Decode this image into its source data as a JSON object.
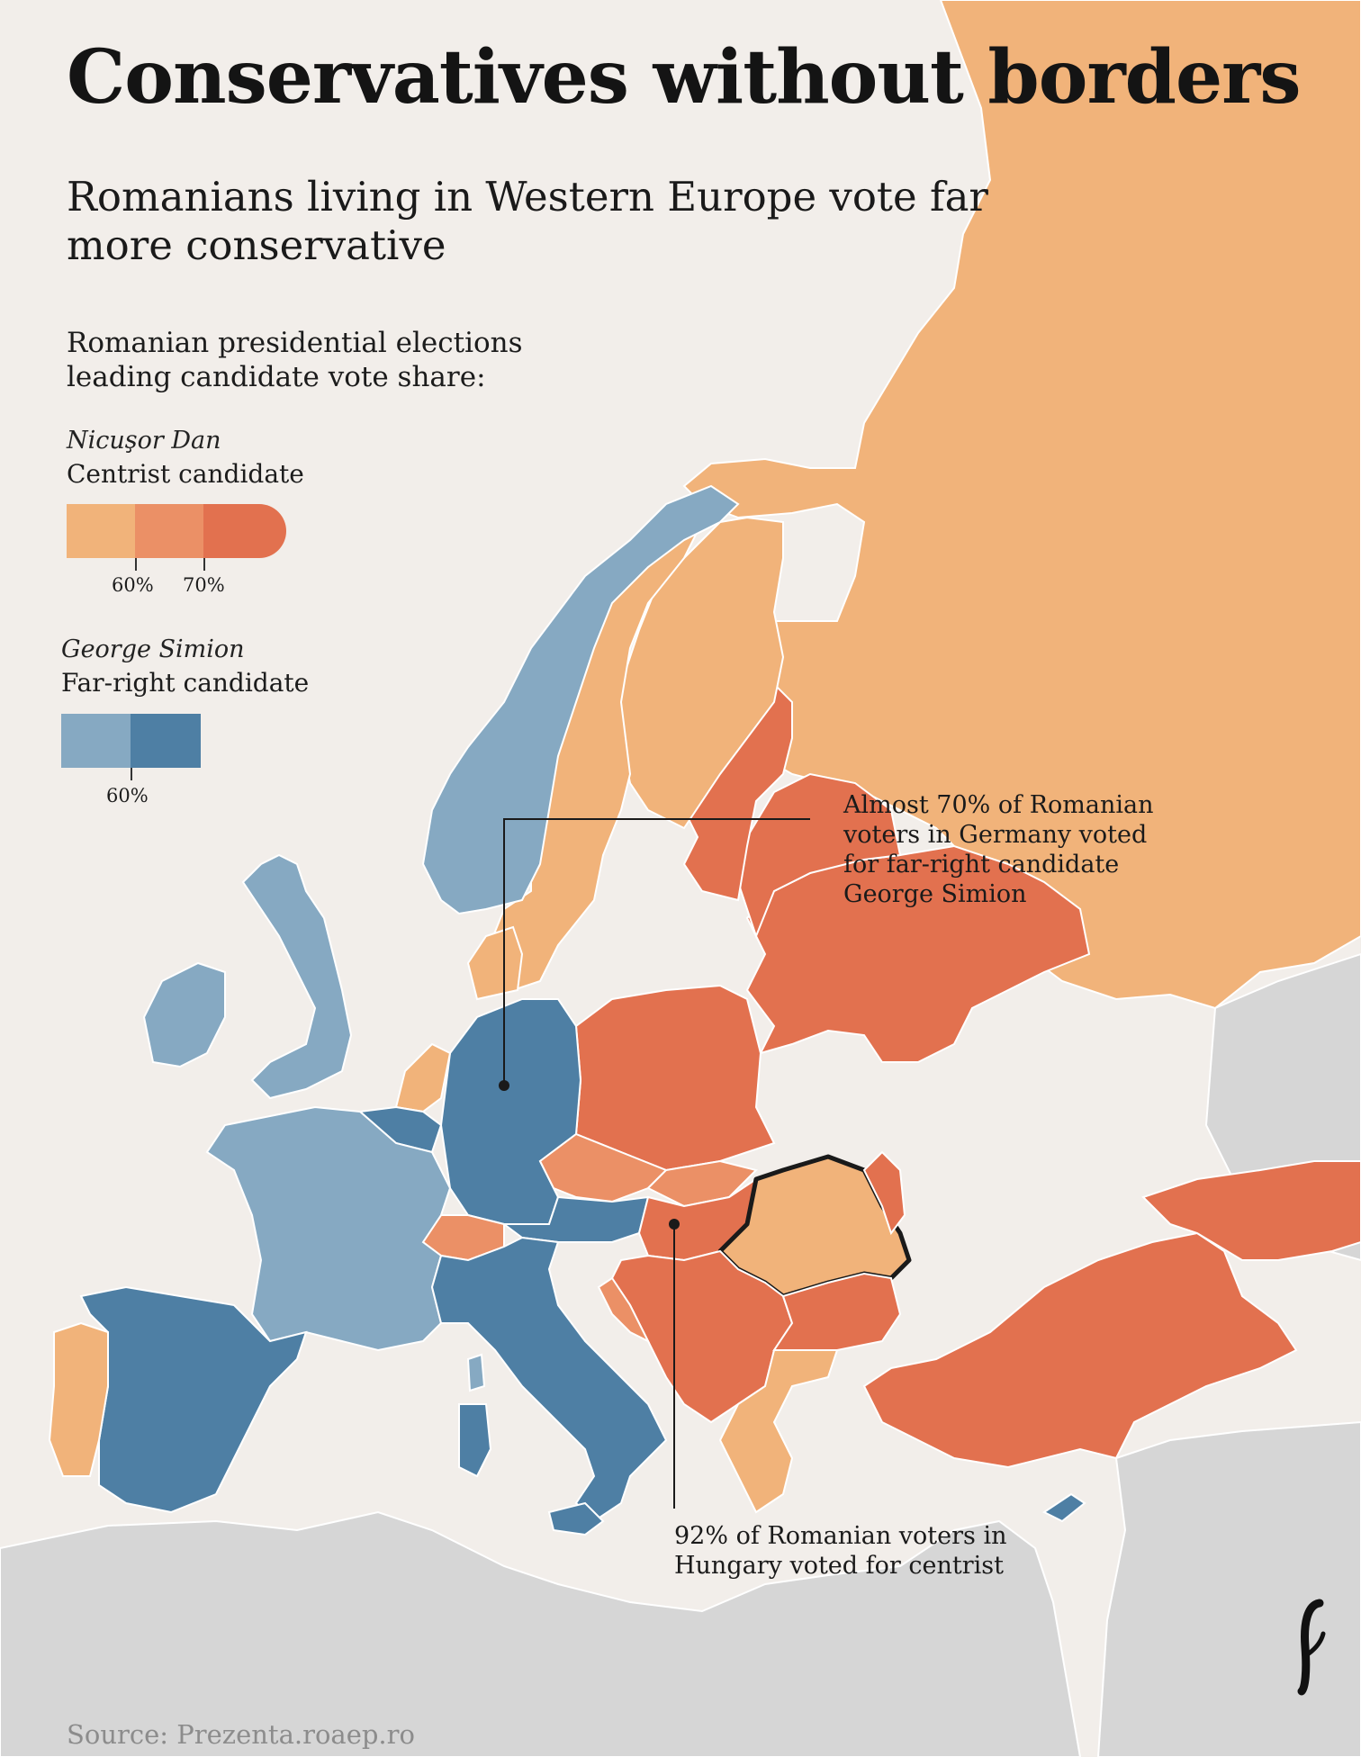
{
  "title": "Conservatives without borders",
  "subtitle": "Romanians living in Western Europe vote far more conservative",
  "legend": {
    "heading": "Romanian presidential elections leading candidate vote share:",
    "candidates": [
      {
        "name": "Nicuşor Dan",
        "description": "Centrist candidate",
        "colors": [
          "#f1b37a",
          "#eb9066",
          "#e2714f"
        ],
        "ticks": [
          "60%",
          "70%"
        ]
      },
      {
        "name": "George Simion",
        "description": "Far-right candidate",
        "colors": [
          "#86a9c2",
          "#4e7fa4"
        ],
        "ticks": [
          "60%"
        ]
      }
    ]
  },
  "annotations": {
    "germany": "Almost 70% of Romanian voters in Germany voted for far-right candidate George Simion",
    "hungary": "92% of Romanian voters in Hungary voted for centrist"
  },
  "source": "Source: Prezenta.roaep.ro",
  "colors": {
    "background": "#f2eeea",
    "outside_land": "#d6d6d6",
    "border": "#ffffff",
    "romania_outline": "#1a1a1a"
  },
  "icons": {
    "logo": "publisher-logo-icon"
  }
}
